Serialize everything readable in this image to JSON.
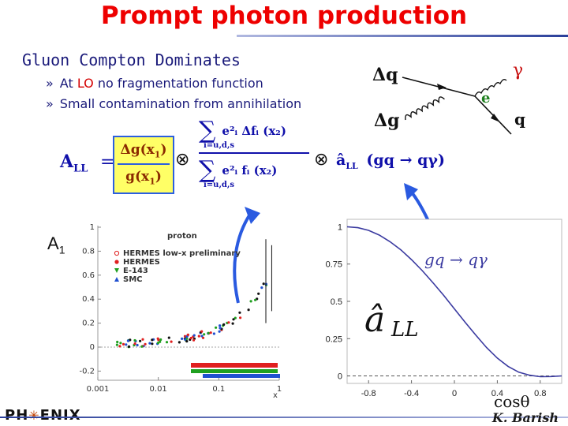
{
  "slide": {
    "title": "Prompt photon production",
    "lead": "Gluon Compton Dominates",
    "bullets": [
      {
        "mark": "»",
        "parts": [
          "At ",
          "LO",
          " no fragmentation function"
        ]
      },
      {
        "mark": "»",
        "parts": [
          "Small contamination from annihilation"
        ]
      }
    ],
    "footer": {
      "logo_left": "PH",
      "logo_right": "ENIX",
      "author": "K. Barish"
    }
  },
  "feynman": {
    "dq": "Δq",
    "dg": "Δg",
    "gamma": "γ",
    "e": "e",
    "q": "q"
  },
  "formula": {
    "lhs": "A",
    "lhs_sub": "LL",
    "eq": "=",
    "num": "Δg(x",
    "num_sub": "1",
    "num_close": ")",
    "den": "g(x",
    "den_sub": "1",
    "den_close": ")",
    "otimes": "⊗",
    "sum_num": "e²ᵢ Δfᵢ (x₂)",
    "sum_den": "e²ᵢ fᵢ (x₂)",
    "sum_lim": "i=u,d,s",
    "sum_sym": "∑",
    "ahat": "â",
    "ahat_sub": "LL",
    "ahat_arg": "(gq → qγ)"
  },
  "left_plot": {
    "y_axis_label": "A",
    "y_axis_sub": "1",
    "panel_title": "proton",
    "legend": [
      {
        "label": "HERMES low-x preliminary",
        "color": "#e02020",
        "shape": "circle-open"
      },
      {
        "label": "HERMES",
        "color": "#e02020",
        "shape": "circle"
      },
      {
        "label": "E-143",
        "color": "#20a020",
        "shape": "triangle-down"
      },
      {
        "label": "SMC",
        "color": "#2050d0",
        "shape": "triangle-up"
      }
    ],
    "y_ticks": [
      "1",
      "0.8",
      "0.6",
      "0.4",
      "0.2",
      "0",
      "-0.2"
    ],
    "x_ticks": [
      "0.001",
      "0.01",
      "0.1",
      "1"
    ],
    "x_label": "x"
  },
  "chart_data": {
    "type": "line",
    "title": "",
    "xlabel": "cosθ",
    "ylabel": "",
    "annotation": "gq → qγ",
    "curve_label": "â",
    "curve_label_sub": "LL",
    "xlim": [
      -1,
      1
    ],
    "ylim": [
      -0.05,
      1.05
    ],
    "x_ticks": [
      "-0.8",
      "-0.4",
      "0",
      "0.4",
      "0.8"
    ],
    "y_ticks": [
      "1",
      "0.75",
      "0.5",
      "0.25",
      "0"
    ],
    "series": [
      {
        "color": "#3a3aa0",
        "x": [
          -1.0,
          -0.9,
          -0.8,
          -0.7,
          -0.6,
          -0.5,
          -0.4,
          -0.3,
          -0.2,
          -0.1,
          0.0,
          0.1,
          0.2,
          0.3,
          0.4,
          0.5,
          0.6,
          0.7,
          0.8,
          0.9,
          1.0
        ],
        "y": [
          1.0,
          0.994,
          0.976,
          0.944,
          0.9,
          0.846,
          0.78,
          0.706,
          0.625,
          0.54,
          0.45,
          0.36,
          0.273,
          0.19,
          0.12,
          0.064,
          0.025,
          0.005,
          -0.005,
          -0.004,
          0.0
        ]
      }
    ],
    "reference_line": {
      "y": 0,
      "style": "dashed"
    }
  }
}
